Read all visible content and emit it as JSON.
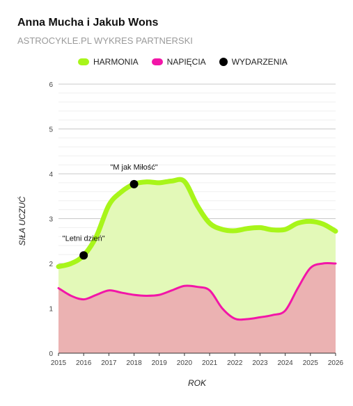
{
  "header": {
    "title": "Anna Mucha i Jakub Wons",
    "subtitle": "ASTROCYKLE.PL WYKRES PARTNERSKI"
  },
  "legend": [
    {
      "label": "HARMONIA",
      "color": "#a8f51a",
      "shape": "line"
    },
    {
      "label": "NAPIĘCIA",
      "color": "#f216a8",
      "shape": "line"
    },
    {
      "label": "WYDARZENIA",
      "color": "#000000",
      "shape": "dot"
    }
  ],
  "chart_data": {
    "type": "area",
    "xlabel": "ROK",
    "ylabel": "SIŁA UCZUĆ",
    "xlim": [
      2015,
      2026
    ],
    "ylim": [
      0,
      6
    ],
    "x_ticks": [
      "2015",
      "2016",
      "2017",
      "2018",
      "2019",
      "2020",
      "2021",
      "2022",
      "2023",
      "2024",
      "2025",
      "2026"
    ],
    "y_ticks": [
      "0",
      "1",
      "2",
      "3",
      "4",
      "5",
      "6"
    ],
    "grid": true,
    "legend_position": "top",
    "series": [
      {
        "name": "HARMONIA",
        "color": "#a8f51a",
        "fill": "#e3f9b8",
        "x": [
          2015,
          2015.5,
          2016,
          2016.5,
          2017,
          2017.5,
          2018,
          2018.5,
          2019,
          2019.5,
          2020,
          2020.5,
          2021,
          2021.5,
          2022,
          2022.5,
          2023,
          2023.5,
          2024,
          2024.5,
          2025,
          2025.5,
          2026
        ],
        "values": [
          1.93,
          2.0,
          2.18,
          2.6,
          3.3,
          3.6,
          3.77,
          3.82,
          3.8,
          3.84,
          3.83,
          3.3,
          2.9,
          2.76,
          2.73,
          2.78,
          2.8,
          2.75,
          2.76,
          2.9,
          2.94,
          2.88,
          2.72
        ]
      },
      {
        "name": "NAPIĘCIA",
        "color": "#f216a8",
        "fill": "#ebb2b2",
        "x": [
          2015,
          2015.5,
          2016,
          2016.5,
          2017,
          2017.5,
          2018,
          2018.5,
          2019,
          2019.5,
          2020,
          2020.5,
          2021,
          2021.5,
          2022,
          2022.5,
          2023,
          2023.5,
          2024,
          2024.5,
          2025,
          2025.5,
          2026
        ],
        "values": [
          1.45,
          1.28,
          1.2,
          1.3,
          1.4,
          1.35,
          1.3,
          1.28,
          1.3,
          1.4,
          1.5,
          1.48,
          1.4,
          1.0,
          0.77,
          0.76,
          0.8,
          0.85,
          0.95,
          1.45,
          1.9,
          2.0,
          2.0
        ]
      }
    ],
    "events": [
      {
        "label": "\"Letni dzień\"",
        "x": 2016.0,
        "y": 2.18
      },
      {
        "label": "\"M jak Miłość\"",
        "x": 2018.0,
        "y": 3.77
      }
    ]
  }
}
